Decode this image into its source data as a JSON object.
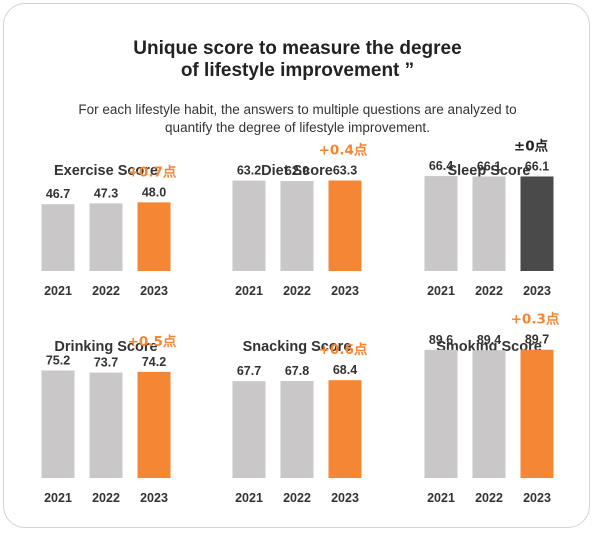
{
  "header": {
    "title_line1": "Unique score to measure the degree",
    "title_line2": "of lifestyle improvement ”",
    "subtitle_line1": "For each lifestyle habit, the answers to multiple questions are analyzed to",
    "subtitle_line2": "quantify the degree of lifestyle improvement."
  },
  "colors": {
    "previous_bar": "#c9c7c8",
    "improved_bar": "#f58634",
    "unchanged_bar": "#4a4a4a",
    "change_text_up": "#f58634",
    "change_text_flat": "#222222"
  },
  "chart_data": [
    {
      "type": "bar",
      "title": "Exercise Score",
      "categories": [
        "2021",
        "2022",
        "2023"
      ],
      "values": [
        46.7,
        47.3,
        48.0
      ],
      "value_labels": [
        "46.7",
        "47.3",
        "48.0"
      ],
      "change_label": "+0.7点"
    },
    {
      "type": "bar",
      "title": "Diet Score",
      "categories": [
        "2021",
        "2022",
        "2023"
      ],
      "values": [
        63.2,
        62.9,
        63.3
      ],
      "value_labels": [
        "63.2",
        "62.9",
        "63.3"
      ],
      "change_label": "+0.4点"
    },
    {
      "type": "bar",
      "title": "Sleep Score",
      "categories": [
        "2021",
        "2022",
        "2023"
      ],
      "values": [
        66.4,
        66.1,
        66.1
      ],
      "value_labels": [
        "66.4",
        "66.1",
        "66.1"
      ],
      "change_label": "±0点"
    },
    {
      "type": "bar",
      "title": "Drinking Score",
      "categories": [
        "2021",
        "2022",
        "2023"
      ],
      "values": [
        75.2,
        73.7,
        74.2
      ],
      "value_labels": [
        "75.2",
        "73.7",
        "74.2"
      ],
      "change_label": "+0.5点"
    },
    {
      "type": "bar",
      "title": "Snacking Score",
      "categories": [
        "2021",
        "2022",
        "2023"
      ],
      "values": [
        67.7,
        67.8,
        68.4
      ],
      "value_labels": [
        "67.7",
        "67.8",
        "68.4"
      ],
      "change_label": "+0.6点"
    },
    {
      "type": "bar",
      "title": "Smoking Score",
      "categories": [
        "2021",
        "2022",
        "2023"
      ],
      "values": [
        89.6,
        89.4,
        89.7
      ],
      "value_labels": [
        "89.6",
        "89.4",
        "89.7"
      ],
      "change_label": "+0.3点"
    }
  ]
}
